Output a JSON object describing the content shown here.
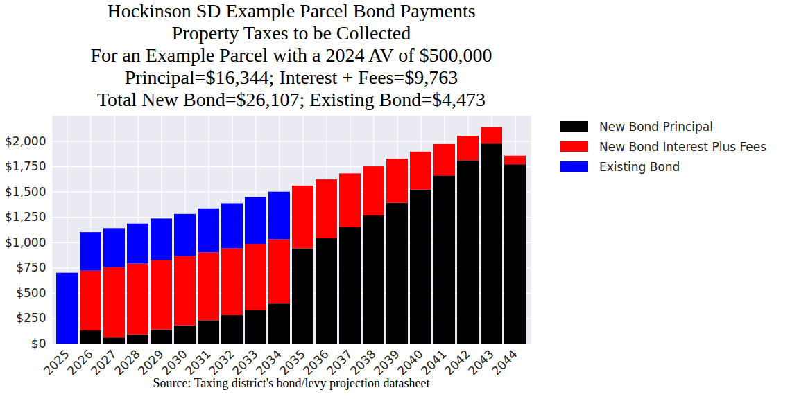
{
  "chart_data": {
    "type": "bar",
    "title": "Hockinson SD Example Parcel Bond Payments\nProperty Taxes to be Collected\nFor an Example Parcel with a 2024 AV of $500,000\nPrincipal=$16,344; Interest + Fees=$9,763\nTotal New Bond=$26,107; Existing Bond=$4,473",
    "xlabel": "Source: Taxing district's bond/levy projection datasheet",
    "categories": [
      "2025",
      "2026",
      "2027",
      "2028",
      "2029",
      "2030",
      "2031",
      "2032",
      "2033",
      "2034",
      "2035",
      "2036",
      "2037",
      "2038",
      "2039",
      "2040",
      "2041",
      "2042",
      "2043",
      "2044"
    ],
    "series": [
      {
        "name": "New Bond Principal",
        "color": "#000000",
        "values": [
          0,
          130,
          60,
          90,
          140,
          180,
          230,
          280,
          330,
          395,
          940,
          1040,
          1150,
          1265,
          1390,
          1520,
          1660,
          1810,
          1975,
          1770
        ]
      },
      {
        "name": "New Bond Interest Plus Fees",
        "color": "#ff0000",
        "values": [
          0,
          590,
          695,
          700,
          685,
          685,
          670,
          660,
          655,
          635,
          620,
          580,
          530,
          485,
          435,
          375,
          310,
          240,
          160,
          85
        ]
      },
      {
        "name": "Existing Bond",
        "color": "#0000ff",
        "values": [
          700,
          380,
          385,
          395,
          410,
          415,
          435,
          445,
          460,
          470,
          0,
          0,
          0,
          0,
          0,
          0,
          0,
          0,
          0,
          0
        ]
      }
    ],
    "stacked": true,
    "grid": true,
    "legend": "outside right",
    "ylim": [
      0,
      2250
    ],
    "yticks": [
      {
        "value": 0,
        "label": "$0"
      },
      {
        "value": 250,
        "label": "$250"
      },
      {
        "value": 500,
        "label": "$500"
      },
      {
        "value": 750,
        "label": "$750"
      },
      {
        "value": 1000,
        "label": "$1,000"
      },
      {
        "value": 1250,
        "label": "$1,250"
      },
      {
        "value": 1500,
        "label": "$1,500"
      },
      {
        "value": 1750,
        "label": "$1,750"
      },
      {
        "value": 2000,
        "label": "$2,000"
      }
    ]
  }
}
